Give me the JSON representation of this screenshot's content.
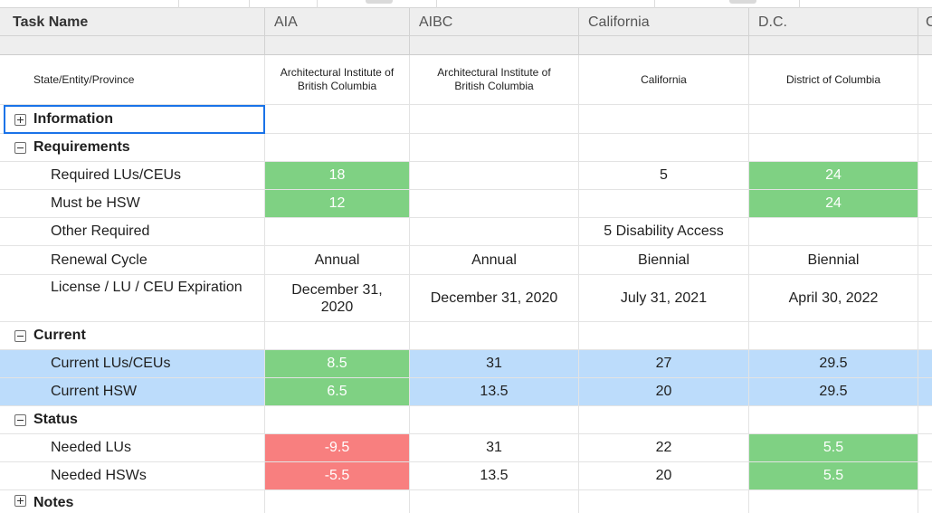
{
  "columns": {
    "task_name": "Task Name",
    "aia": "AIA",
    "aibc": "AIBC",
    "california": "California",
    "dc": "D.C.",
    "next_partial": "C"
  },
  "rows": {
    "state_entity": {
      "label": "State/Entity/Province",
      "aia": "Architectural Institute of British Columbia",
      "aibc": "Architectural Institute of British Columbia",
      "california": "California",
      "dc": "District of Columbia"
    },
    "information": {
      "label": "Information",
      "expanded": false
    },
    "requirements": {
      "label": "Requirements",
      "expanded": true
    },
    "required_lus": {
      "label": "Required LUs/CEUs",
      "aia": "18",
      "aibc": "",
      "california": "5",
      "dc": "24"
    },
    "must_be_hsw": {
      "label": "Must be HSW",
      "aia": "12",
      "aibc": "",
      "california": "",
      "dc": "24"
    },
    "other_required": {
      "label": "Other Required",
      "aia": "",
      "aibc": "",
      "california": "5 Disability Access",
      "dc": ""
    },
    "renewal_cycle": {
      "label": "Renewal Cycle",
      "aia": "Annual",
      "aibc": "Annual",
      "california": "Biennial",
      "dc": "Biennial"
    },
    "expiration": {
      "label": "License / LU / CEU Expiration",
      "aia": "December 31, 2020",
      "aibc": "December 31, 2020",
      "california": "July 31, 2021",
      "dc": "April 30, 2022"
    },
    "current": {
      "label": "Current",
      "expanded": true
    },
    "current_lus": {
      "label": "Current LUs/CEUs",
      "aia": "8.5",
      "aibc": "31",
      "california": "27",
      "dc": "29.5"
    },
    "current_hsw": {
      "label": "Current HSW",
      "aia": "6.5",
      "aibc": "13.5",
      "california": "20",
      "dc": "29.5"
    },
    "status": {
      "label": "Status",
      "expanded": true
    },
    "needed_lus": {
      "label": "Needed LUs",
      "aia": "-9.5",
      "aibc": "31",
      "california": "22",
      "dc": "5.5"
    },
    "needed_hsws": {
      "label": "Needed HSWs",
      "aia": "-5.5",
      "aibc": "13.5",
      "california": "20",
      "dc": "5.5"
    },
    "notes": {
      "label": "Notes",
      "expanded": false
    }
  },
  "colors": {
    "met": "#7fd183",
    "deficit": "#f87f7f",
    "highlight_row": "#bcdcfb",
    "header_bg": "#eeeeee",
    "selection": "#1a73e8"
  }
}
